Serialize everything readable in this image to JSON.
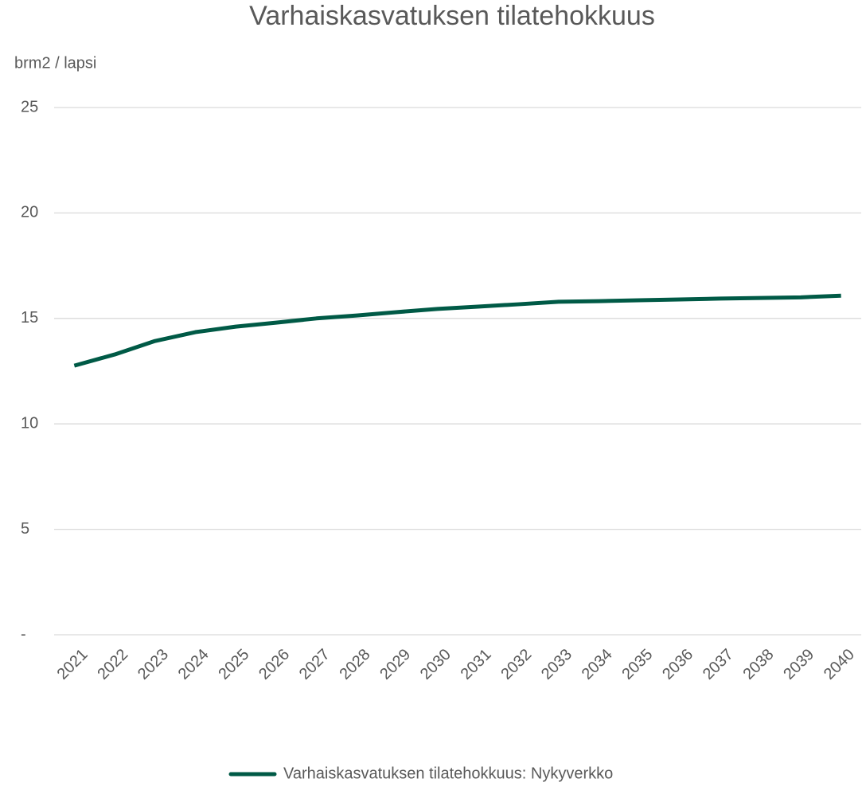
{
  "chart_data": {
    "type": "line",
    "title": "Varhaiskasvatuksen tilatehokkuus",
    "y_label": "brm2 / lapsi",
    "categories": [
      "2021",
      "2022",
      "2023",
      "2024",
      "2025",
      "2026",
      "2027",
      "2028",
      "2029",
      "2030",
      "2031",
      "2032",
      "2033",
      "2034",
      "2035",
      "2036",
      "2037",
      "2038",
      "2039",
      "2040"
    ],
    "series": [
      {
        "name": "Varhaiskasvatuksen tilatehokkuus: Nykyverkko",
        "color": "#005a46",
        "values": [
          12.76,
          13.29,
          13.93,
          14.35,
          14.61,
          14.8,
          15.0,
          15.14,
          15.3,
          15.45,
          15.56,
          15.67,
          15.79,
          15.82,
          15.86,
          15.9,
          15.94,
          15.97,
          16.0,
          16.08
        ]
      }
    ],
    "ylim": [
      0,
      25
    ],
    "yticks": [
      {
        "value": 0,
        "label": "-"
      },
      5,
      10,
      15,
      20,
      25
    ],
    "grid": true,
    "legend": "bottom"
  }
}
